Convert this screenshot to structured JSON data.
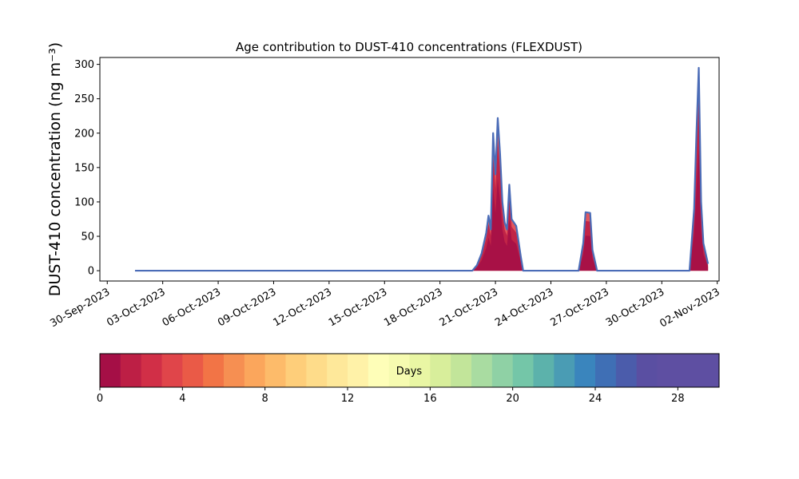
{
  "chart_data": {
    "type": "area",
    "title": "Age contribution to DUST-410 concentrations (FLEXDUST)",
    "ylabel": "DUST-410 concentration (ng m⁻³)",
    "ylim": [
      -15,
      310
    ],
    "yticks": [
      0,
      50,
      100,
      150,
      200,
      250,
      300
    ],
    "xlim": [
      "2023-09-30",
      "2023-11-02"
    ],
    "xtick_labels": [
      "30-Sep-2023",
      "03-Oct-2023",
      "06-Oct-2023",
      "09-Oct-2023",
      "12-Oct-2023",
      "15-Oct-2023",
      "18-Oct-2023",
      "21-Oct-2023",
      "24-Oct-2023",
      "27-Oct-2023",
      "30-Oct-2023",
      "02-Nov-2023"
    ],
    "x_dates": [
      "2023-09-30",
      "2023-10-03",
      "2023-10-06",
      "2023-10-09",
      "2023-10-12",
      "2023-10-15",
      "2023-10-18",
      "2023-10-21",
      "2023-10-24",
      "2023-10-27",
      "2023-10-30",
      "2023-11-02"
    ],
    "total_series": [
      [
        "2023-10-01 12:00",
        0
      ],
      [
        "2023-10-19 18:00",
        0
      ],
      [
        "2023-10-20 00:00",
        8
      ],
      [
        "2023-10-20 06:00",
        25
      ],
      [
        "2023-10-20 12:00",
        55
      ],
      [
        "2023-10-20 15:00",
        80
      ],
      [
        "2023-10-20 18:00",
        60
      ],
      [
        "2023-10-20 21:00",
        200
      ],
      [
        "2023-10-21 00:00",
        140
      ],
      [
        "2023-10-21 03:00",
        222
      ],
      [
        "2023-10-21 06:00",
        170
      ],
      [
        "2023-10-21 09:00",
        100
      ],
      [
        "2023-10-21 12:00",
        70
      ],
      [
        "2023-10-21 15:00",
        60
      ],
      [
        "2023-10-21 18:00",
        125
      ],
      [
        "2023-10-21 21:00",
        75
      ],
      [
        "2023-10-22 03:00",
        65
      ],
      [
        "2023-10-22 09:00",
        20
      ],
      [
        "2023-10-22 12:00",
        0
      ],
      [
        "2023-10-25 12:00",
        0
      ],
      [
        "2023-10-25 18:00",
        40
      ],
      [
        "2023-10-25 21:00",
        85
      ],
      [
        "2023-10-26 03:00",
        84
      ],
      [
        "2023-10-26 06:00",
        30
      ],
      [
        "2023-10-26 12:00",
        0
      ],
      [
        "2023-10-31 12:00",
        0
      ],
      [
        "2023-10-31 18:00",
        90
      ],
      [
        "2023-10-31 21:00",
        200
      ],
      [
        "2023-11-01 00:00",
        295
      ],
      [
        "2023-11-01 03:00",
        100
      ],
      [
        "2023-11-01 06:00",
        40
      ],
      [
        "2023-11-01 12:00",
        10
      ]
    ],
    "age_fraction_fill": 0.9,
    "colorbar": {
      "label": "Days",
      "min": 0,
      "max": 30,
      "bins": 30,
      "ticks": [
        0,
        4,
        8,
        12,
        16,
        20,
        24,
        28
      ],
      "colors": [
        "#a50f46",
        "#bd1f45",
        "#d12f47",
        "#e0454a",
        "#ea5a47",
        "#f27446",
        "#f68f52",
        "#fba65c",
        "#fdbb6a",
        "#fece7a",
        "#fedc8a",
        "#fee89a",
        "#fff2a8",
        "#fefeb8",
        "#f6fbb0",
        "#e9f6a4",
        "#d8ee9b",
        "#c2e59a",
        "#a9dca1",
        "#8fd1a5",
        "#74c6a8",
        "#5cb2ab",
        "#4a9cb4",
        "#3a85bd",
        "#3f6fb5",
        "#4b5cab",
        "#5a4fa2",
        "#5e4fa2",
        "#5e4fa2",
        "#5e4fa2"
      ]
    },
    "envelope_color": "#4b6cb7",
    "grid": false
  }
}
